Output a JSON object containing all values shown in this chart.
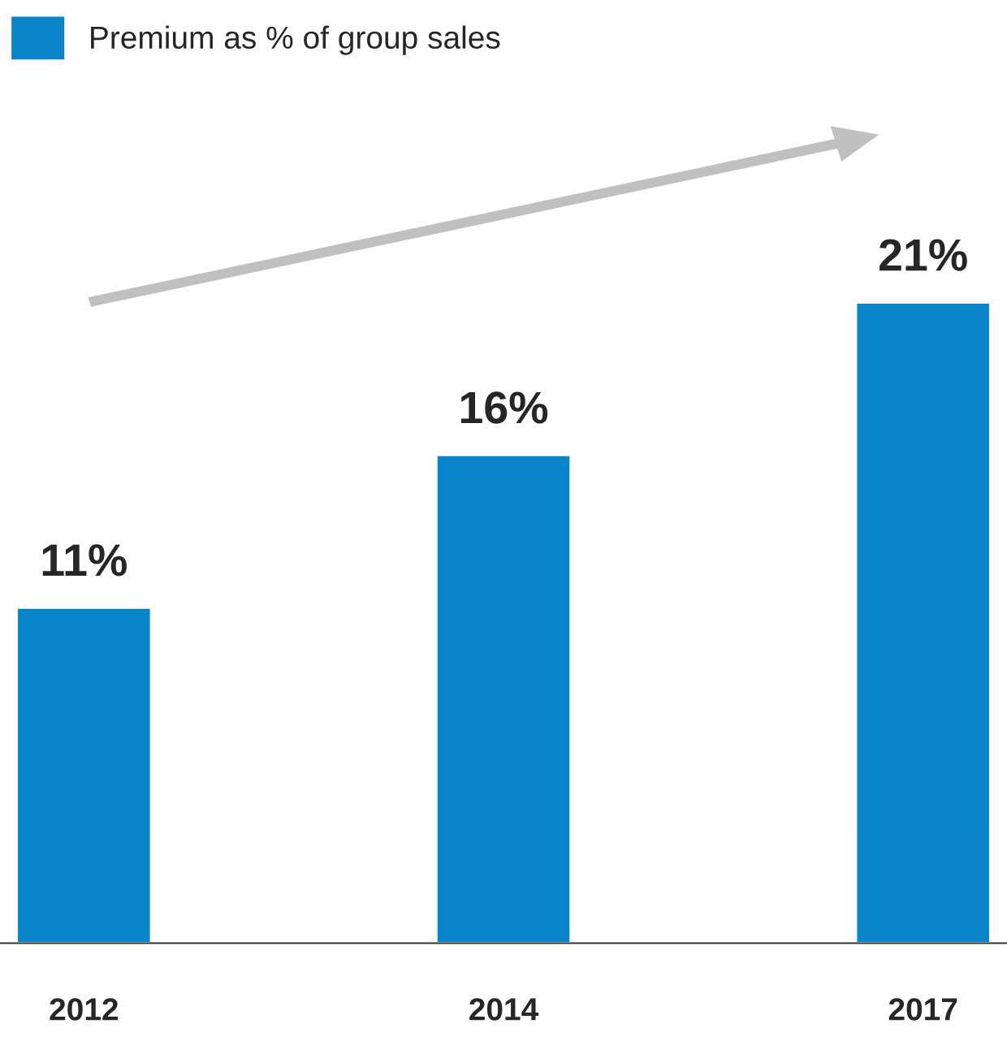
{
  "chart_data": {
    "type": "bar",
    "categories": [
      "2012",
      "2014",
      "2017"
    ],
    "series": [
      {
        "name": "Premium as % of group sales",
        "color": "#0a84c8",
        "values": [
          11,
          16,
          21
        ],
        "value_labels": [
          "11%",
          "16%",
          "21%"
        ]
      }
    ],
    "legend": "top left",
    "grid": false
  }
}
